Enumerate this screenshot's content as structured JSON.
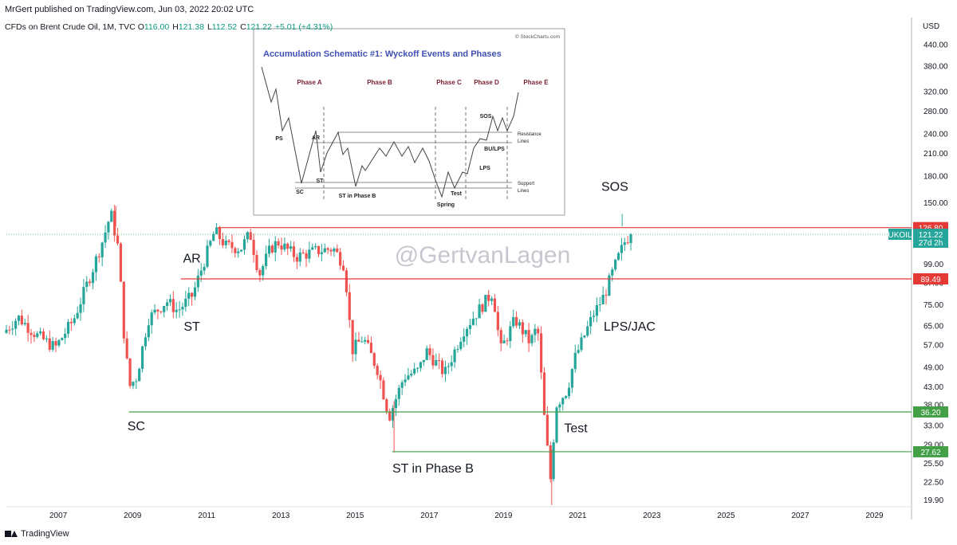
{
  "header": {
    "published": "MrGert published on TradingView.com, Jun 03, 2022 20:02 UTC",
    "symbol": "CFDs on Brent Crude Oil, 1M, TVC",
    "open_label": "O",
    "open": "116.00",
    "high_label": "H",
    "high": "121.38",
    "low_label": "L",
    "low": "112.52",
    "close_label": "C",
    "close": "121.22",
    "change": "+5.01 (+4.31%)"
  },
  "footer": {
    "brand": "TradingView"
  },
  "watermark": "@GertvanLagen",
  "colors": {
    "up": "#26a69a",
    "down": "#ef5350",
    "red_line": "#e53935",
    "green_line": "#43a047",
    "price_tag": "#26a69a"
  },
  "chart_data": {
    "type": "candlestick",
    "currency": "USD",
    "scale": "log",
    "ylim": [
      19.0,
      480
    ],
    "xlim": [
      2005.6,
      2030.0
    ],
    "x_ticks": [
      "2007",
      "2009",
      "2011",
      "2013",
      "2015",
      "2017",
      "2019",
      "2021",
      "2023",
      "2025",
      "2027",
      "2029"
    ],
    "y_ticks": [
      {
        "v": 440,
        "label": "440.00"
      },
      {
        "v": 380,
        "label": "380.00"
      },
      {
        "v": 320,
        "label": "320.00"
      },
      {
        "v": 280,
        "label": "280.00"
      },
      {
        "v": 240,
        "label": "240.00"
      },
      {
        "v": 210,
        "label": "210.00"
      },
      {
        "v": 180,
        "label": "180.00"
      },
      {
        "v": 150,
        "label": "150.00"
      },
      {
        "v": 99,
        "label": "99.00"
      },
      {
        "v": 87,
        "label": "87.00"
      },
      {
        "v": 75,
        "label": "75.00"
      },
      {
        "v": 65,
        "label": "65.00"
      },
      {
        "v": 57,
        "label": "57.00"
      },
      {
        "v": 49,
        "label": "49.00"
      },
      {
        "v": 43,
        "label": "43.00"
      },
      {
        "v": 38,
        "label": "38.00"
      },
      {
        "v": 33,
        "label": "33.00"
      },
      {
        "v": 29,
        "label": "29.00"
      },
      {
        "v": 25.5,
        "label": "25.50"
      },
      {
        "v": 22.5,
        "label": "22.50"
      },
      {
        "v": 19.9,
        "label": "19.90"
      }
    ],
    "levels": [
      {
        "v": 126.8,
        "label": "126.80",
        "color": "#e53935",
        "x_start": 2011.3
      },
      {
        "v": 89.49,
        "label": "89.49",
        "color": "#e53935",
        "x_start": 2010.3
      },
      {
        "v": 36.2,
        "label": "36.20",
        "color": "#43a047",
        "x_start": 2008.9
      },
      {
        "v": 27.62,
        "label": "27.62",
        "color": "#43a047",
        "x_start": 2016.0
      }
    ],
    "last_price": {
      "symbol": "UKOIL",
      "value": 121.22,
      "label": "121.22",
      "countdown": "27d 2h"
    },
    "annotations": [
      {
        "text": "AR",
        "x": 2010.6,
        "v": 100
      },
      {
        "text": "ST",
        "x": 2010.6,
        "v": 63
      },
      {
        "text": "SC",
        "x": 2009.1,
        "v": 32
      },
      {
        "text": "ST in Phase B",
        "x": 2017.1,
        "v": 24
      },
      {
        "text": "Test",
        "x": 2020.95,
        "v": 31.5
      },
      {
        "text": "LPS/JAC",
        "x": 2022.4,
        "v": 63
      },
      {
        "text": "SOS",
        "x": 2022.0,
        "v": 163
      }
    ],
    "anchors": [
      [
        2005.6,
        62
      ],
      [
        2006.0,
        69
      ],
      [
        2006.5,
        61
      ],
      [
        2007.0,
        56
      ],
      [
        2007.5,
        68
      ],
      [
        2008.0,
        95
      ],
      [
        2008.3,
        118
      ],
      [
        2008.5,
        140
      ],
      [
        2008.7,
        110
      ],
      [
        2008.85,
        62
      ],
      [
        2009.0,
        43
      ],
      [
        2009.2,
        46
      ],
      [
        2009.5,
        68
      ],
      [
        2010.0,
        77
      ],
      [
        2010.3,
        72
      ],
      [
        2010.7,
        80
      ],
      [
        2011.0,
        100
      ],
      [
        2011.3,
        124
      ],
      [
        2011.6,
        112
      ],
      [
        2012.0,
        110
      ],
      [
        2012.25,
        122
      ],
      [
        2012.5,
        92
      ],
      [
        2012.8,
        110
      ],
      [
        2013.0,
        115
      ],
      [
        2013.5,
        104
      ],
      [
        2014.0,
        108
      ],
      [
        2014.5,
        110
      ],
      [
        2014.8,
        98
      ],
      [
        2015.0,
        55
      ],
      [
        2015.3,
        60
      ],
      [
        2015.7,
        48
      ],
      [
        2016.0,
        35
      ],
      [
        2016.4,
        46
      ],
      [
        2016.8,
        48
      ],
      [
        2017.0,
        55
      ],
      [
        2017.5,
        47
      ],
      [
        2018.0,
        63
      ],
      [
        2018.4,
        72
      ],
      [
        2018.8,
        82
      ],
      [
        2019.0,
        55
      ],
      [
        2019.4,
        68
      ],
      [
        2019.8,
        58
      ],
      [
        2020.0,
        65
      ],
      [
        2020.2,
        33
      ],
      [
        2020.35,
        23
      ],
      [
        2020.5,
        38
      ],
      [
        2020.8,
        42
      ],
      [
        2021.0,
        52
      ],
      [
        2021.5,
        70
      ],
      [
        2021.8,
        80
      ],
      [
        2022.0,
        92
      ],
      [
        2022.2,
        105
      ],
      [
        2022.35,
        115
      ],
      [
        2022.5,
        121.22
      ]
    ]
  },
  "inset": {
    "credit": "© StockCharts.com",
    "title": "Accumulation Schematic #1: Wyckoff Events and Phases",
    "phases": [
      "Phase A",
      "Phase B",
      "Phase C",
      "Phase D",
      "Phase E"
    ],
    "events": [
      "PS",
      "AR",
      "SC",
      "ST",
      "ST in Phase B",
      "Spring",
      "Test",
      "LPS",
      "BU/LPS",
      "SOS"
    ],
    "resistance_label_1": "Resistance",
    "resistance_label_2": "Lines",
    "support_label_1": "Support",
    "support_label_2": "Lines"
  }
}
